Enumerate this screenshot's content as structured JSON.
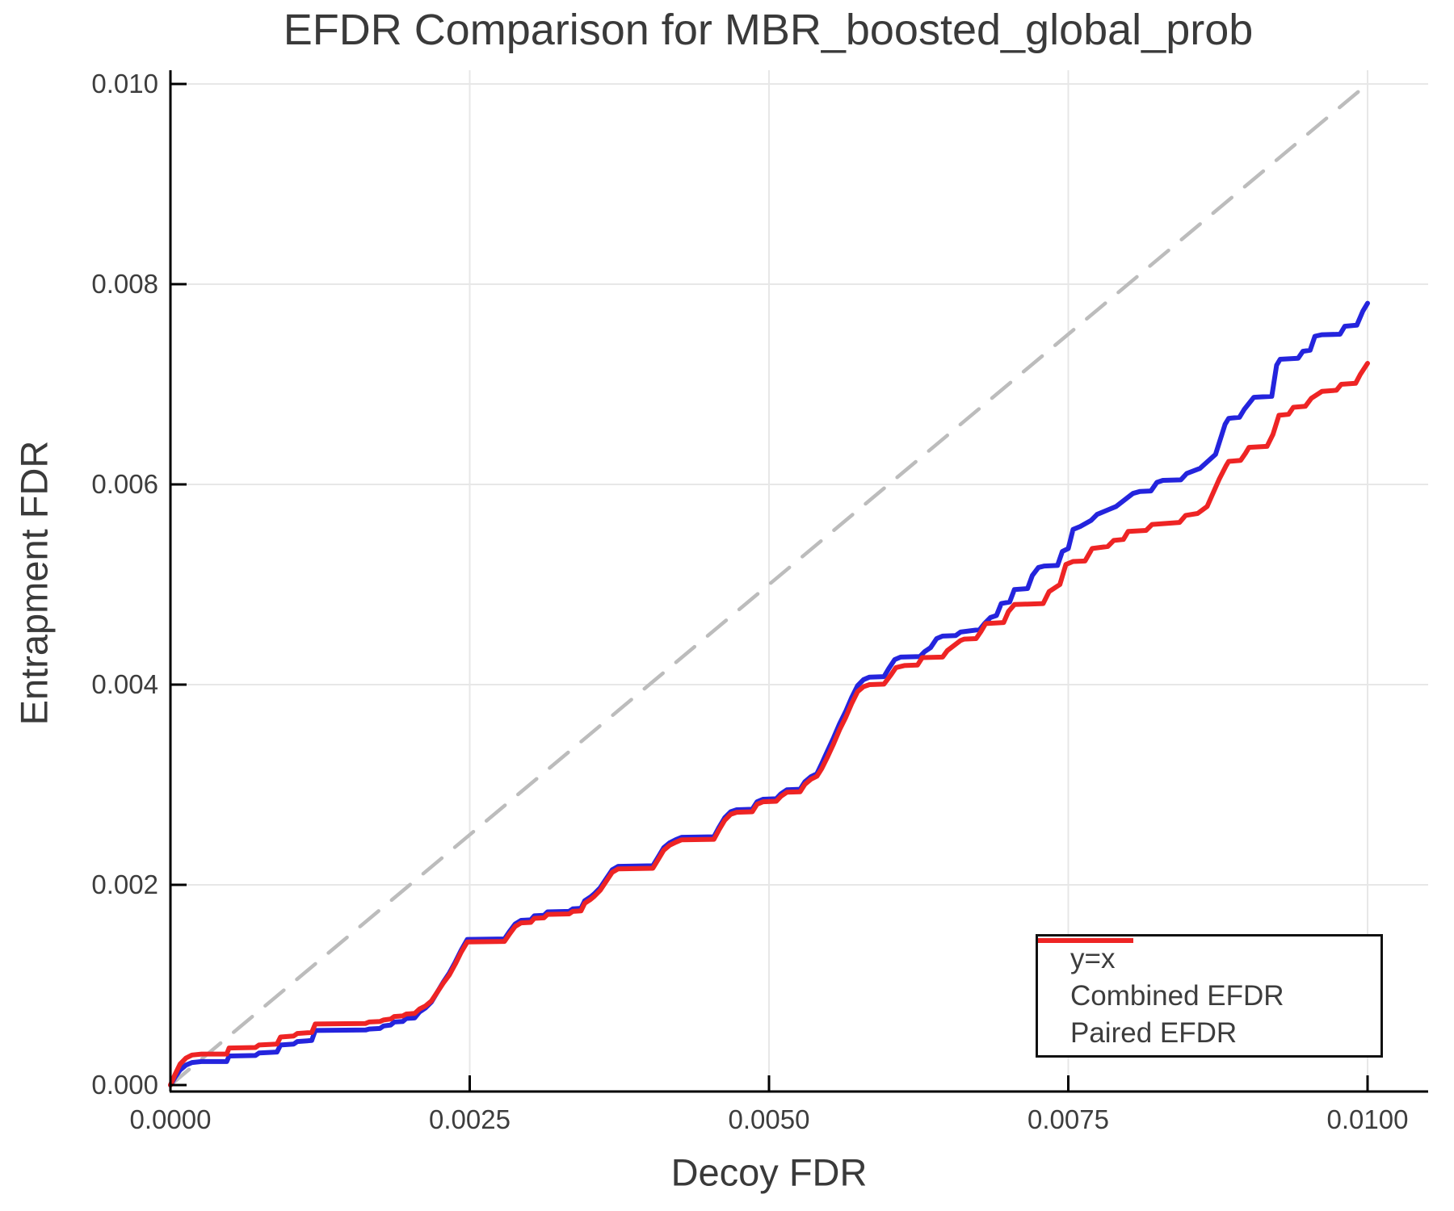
{
  "figure": {
    "title": "EFDR Comparison for MBR_boosted_global_prob"
  },
  "chart_data": {
    "type": "line",
    "title": "EFDR Comparison for MBR_boosted_global_prob",
    "xlabel": "Decoy FDR",
    "ylabel": "Entrapment FDR",
    "grid": true,
    "xlim": [
      0.0,
      0.0105
    ],
    "ylim": [
      0.0,
      0.0102
    ],
    "x_ticks": {
      "values": [
        0.0,
        0.0025,
        0.005,
        0.0075,
        0.01
      ],
      "labels": [
        "0.0000",
        "0.0025",
        "0.0050",
        "0.0075",
        "0.0100"
      ]
    },
    "y_ticks": {
      "values": [
        0.0,
        0.002,
        0.004,
        0.006,
        0.008,
        0.01
      ],
      "labels": [
        "0.000",
        "0.002",
        "0.004",
        "0.006",
        "0.008",
        "0.010"
      ]
    },
    "colors": {
      "identity": "#bcbcbc",
      "combined": "#2424dd",
      "paired": "#ee2424",
      "grid": "#e7e7e7",
      "axis": "#000000",
      "tick_text": "#3d3d3d"
    },
    "legend": {
      "position": "bottom-right",
      "entries": [
        {
          "label": "y=x",
          "color": "#bcbcbc",
          "dash": "30 20",
          "width": 4.5
        },
        {
          "label": "Combined EFDR",
          "color": "#2424dd",
          "dash": "",
          "width": 6
        },
        {
          "label": "Paired EFDR",
          "color": "#ee2424",
          "dash": "",
          "width": 6
        }
      ]
    },
    "units_note": "series points are in units of 1e-4 on both axes (100 = 0.01)",
    "series": [
      {
        "name": "y=x",
        "style": "dashed",
        "color": "#bcbcbc",
        "width": 4.5,
        "dash": "30 21",
        "points": [
          [
            0,
            0
          ],
          [
            100,
            100
          ]
        ]
      },
      {
        "name": "Combined EFDR",
        "style": "solid",
        "color": "#2424dd",
        "width": 6,
        "dash": "",
        "points": [
          [
            0,
            0
          ],
          [
            0.4,
            0.8
          ],
          [
            0.8,
            1.5
          ],
          [
            1.3,
            2.0
          ],
          [
            1.8,
            2.25
          ],
          [
            2.6,
            2.35
          ],
          [
            4.7,
            2.35
          ],
          [
            4.9,
            2.9
          ],
          [
            7.1,
            2.95
          ],
          [
            7.4,
            3.2
          ],
          [
            8.9,
            3.3
          ],
          [
            9.2,
            4.0
          ],
          [
            10.3,
            4.1
          ],
          [
            10.6,
            4.35
          ],
          [
            11.8,
            4.45
          ],
          [
            12.1,
            5.45
          ],
          [
            16.3,
            5.5
          ],
          [
            16.6,
            5.6
          ],
          [
            17.5,
            5.65
          ],
          [
            17.8,
            5.9
          ],
          [
            18.4,
            6.0
          ],
          [
            18.7,
            6.3
          ],
          [
            19.4,
            6.35
          ],
          [
            19.7,
            6.65
          ],
          [
            20.4,
            6.7
          ],
          [
            20.8,
            7.3
          ],
          [
            21.3,
            7.7
          ],
          [
            21.8,
            8.3
          ],
          [
            22.3,
            9.3
          ],
          [
            22.8,
            10.3
          ],
          [
            23.3,
            11.2
          ],
          [
            23.8,
            12.3
          ],
          [
            24.3,
            13.5
          ],
          [
            24.8,
            14.55
          ],
          [
            27.9,
            14.6
          ],
          [
            28.3,
            15.3
          ],
          [
            28.8,
            16.1
          ],
          [
            29.3,
            16.45
          ],
          [
            30.1,
            16.5
          ],
          [
            30.4,
            16.9
          ],
          [
            31.2,
            16.95
          ],
          [
            31.5,
            17.3
          ],
          [
            33.3,
            17.35
          ],
          [
            33.6,
            17.6
          ],
          [
            34.3,
            17.65
          ],
          [
            34.6,
            18.4
          ],
          [
            35.1,
            18.8
          ],
          [
            35.4,
            19.1
          ],
          [
            35.9,
            19.7
          ],
          [
            36.4,
            20.6
          ],
          [
            36.9,
            21.5
          ],
          [
            37.4,
            21.85
          ],
          [
            40.3,
            21.9
          ],
          [
            40.7,
            22.7
          ],
          [
            41.2,
            23.7
          ],
          [
            41.7,
            24.2
          ],
          [
            42.2,
            24.5
          ],
          [
            42.7,
            24.75
          ],
          [
            45.4,
            24.8
          ],
          [
            45.8,
            25.7
          ],
          [
            46.3,
            26.7
          ],
          [
            46.8,
            27.3
          ],
          [
            47.3,
            27.5
          ],
          [
            48.6,
            27.55
          ],
          [
            49,
            28.3
          ],
          [
            49.5,
            28.55
          ],
          [
            50.6,
            28.6
          ],
          [
            51,
            29.1
          ],
          [
            51.5,
            29.5
          ],
          [
            52.6,
            29.55
          ],
          [
            53,
            30.3
          ],
          [
            53.5,
            30.8
          ],
          [
            54,
            31.1
          ],
          [
            54.4,
            32.1
          ],
          [
            54.9,
            33.4
          ],
          [
            55.4,
            34.7
          ],
          [
            55.9,
            36.1
          ],
          [
            56.4,
            37.3
          ],
          [
            56.9,
            38.7
          ],
          [
            57.4,
            39.9
          ],
          [
            57.9,
            40.5
          ],
          [
            58.4,
            40.75
          ],
          [
            59.6,
            40.8
          ],
          [
            60,
            41.6
          ],
          [
            60.5,
            42.5
          ],
          [
            61,
            42.75
          ],
          [
            62.6,
            42.8
          ],
          [
            63,
            43.3
          ],
          [
            63.5,
            43.7
          ],
          [
            64,
            44.6
          ],
          [
            64.5,
            44.85
          ],
          [
            65.6,
            44.9
          ],
          [
            66,
            45.25
          ],
          [
            67.6,
            45.5
          ],
          [
            68,
            46.1
          ],
          [
            68.5,
            46.7
          ],
          [
            69,
            46.9
          ],
          [
            69.4,
            48.1
          ],
          [
            70.1,
            48.25
          ],
          [
            70.5,
            49.5
          ],
          [
            71.6,
            49.6
          ],
          [
            72,
            50.9
          ],
          [
            72.5,
            51.7
          ],
          [
            73,
            51.85
          ],
          [
            74.1,
            51.9
          ],
          [
            74.5,
            53.3
          ],
          [
            75,
            53.6
          ],
          [
            75.4,
            55.5
          ],
          [
            76,
            55.8
          ],
          [
            76.9,
            56.4
          ],
          [
            77.4,
            57.0
          ],
          [
            78.4,
            57.5
          ],
          [
            79,
            57.8
          ],
          [
            80.4,
            59.1
          ],
          [
            81,
            59.3
          ],
          [
            81.9,
            59.35
          ],
          [
            82.4,
            60.2
          ],
          [
            82.9,
            60.4
          ],
          [
            84.4,
            60.45
          ],
          [
            84.9,
            61.1
          ],
          [
            86,
            61.6
          ],
          [
            87.3,
            63.0
          ],
          [
            88.1,
            66.0
          ],
          [
            88.4,
            66.6
          ],
          [
            89.3,
            66.7
          ],
          [
            89.7,
            67.5
          ],
          [
            90.5,
            68.7
          ],
          [
            92,
            68.8
          ],
          [
            92.4,
            71.9
          ],
          [
            92.7,
            72.5
          ],
          [
            94.2,
            72.6
          ],
          [
            94.6,
            73.3
          ],
          [
            95.2,
            73.4
          ],
          [
            95.6,
            74.8
          ],
          [
            96.2,
            74.95
          ],
          [
            97.7,
            75.0
          ],
          [
            98.1,
            75.8
          ],
          [
            99.1,
            75.9
          ],
          [
            99.6,
            77.3
          ],
          [
            100,
            78.1
          ]
        ]
      },
      {
        "name": "Paired EFDR",
        "style": "solid",
        "color": "#ee2424",
        "width": 6,
        "dash": "",
        "points": [
          [
            0,
            0
          ],
          [
            0.4,
            1.1
          ],
          [
            0.8,
            2.1
          ],
          [
            1.3,
            2.7
          ],
          [
            1.8,
            3.0
          ],
          [
            2.6,
            3.1
          ],
          [
            4.7,
            3.1
          ],
          [
            4.9,
            3.7
          ],
          [
            7.1,
            3.75
          ],
          [
            7.4,
            4.0
          ],
          [
            8.9,
            4.1
          ],
          [
            9.2,
            4.8
          ],
          [
            10.3,
            4.9
          ],
          [
            10.6,
            5.15
          ],
          [
            11.8,
            5.25
          ],
          [
            12.1,
            6.1
          ],
          [
            16.3,
            6.15
          ],
          [
            16.6,
            6.3
          ],
          [
            17.5,
            6.35
          ],
          [
            17.8,
            6.5
          ],
          [
            18.4,
            6.6
          ],
          [
            18.7,
            6.85
          ],
          [
            19.4,
            6.9
          ],
          [
            19.7,
            7.1
          ],
          [
            20.4,
            7.15
          ],
          [
            20.8,
            7.6
          ],
          [
            21.3,
            7.9
          ],
          [
            21.8,
            8.4
          ],
          [
            22.3,
            9.3
          ],
          [
            22.8,
            10.2
          ],
          [
            23.3,
            11.0
          ],
          [
            23.8,
            12.1
          ],
          [
            24.3,
            13.3
          ],
          [
            24.8,
            14.3
          ],
          [
            27.9,
            14.35
          ],
          [
            28.3,
            15.05
          ],
          [
            28.8,
            15.85
          ],
          [
            29.3,
            16.2
          ],
          [
            30.1,
            16.25
          ],
          [
            30.4,
            16.65
          ],
          [
            31.2,
            16.7
          ],
          [
            31.5,
            17.05
          ],
          [
            33.3,
            17.1
          ],
          [
            33.6,
            17.35
          ],
          [
            34.3,
            17.4
          ],
          [
            34.6,
            18.15
          ],
          [
            35.1,
            18.55
          ],
          [
            35.4,
            18.85
          ],
          [
            35.9,
            19.45
          ],
          [
            36.4,
            20.35
          ],
          [
            36.9,
            21.25
          ],
          [
            37.4,
            21.6
          ],
          [
            40.3,
            21.65
          ],
          [
            40.7,
            22.45
          ],
          [
            41.2,
            23.45
          ],
          [
            41.7,
            23.95
          ],
          [
            42.2,
            24.25
          ],
          [
            42.7,
            24.5
          ],
          [
            45.4,
            24.55
          ],
          [
            45.8,
            25.45
          ],
          [
            46.3,
            26.45
          ],
          [
            46.8,
            27.05
          ],
          [
            47.3,
            27.25
          ],
          [
            48.6,
            27.3
          ],
          [
            49,
            28.05
          ],
          [
            49.5,
            28.3
          ],
          [
            50.6,
            28.35
          ],
          [
            51,
            28.85
          ],
          [
            51.5,
            29.25
          ],
          [
            52.6,
            29.3
          ],
          [
            53,
            30.05
          ],
          [
            53.5,
            30.55
          ],
          [
            54,
            30.85
          ],
          [
            54.4,
            31.6
          ],
          [
            54.9,
            32.8
          ],
          [
            55.4,
            34.1
          ],
          [
            55.9,
            35.5
          ],
          [
            56.4,
            36.7
          ],
          [
            56.9,
            38.1
          ],
          [
            57.4,
            39.3
          ],
          [
            57.9,
            39.8
          ],
          [
            58.4,
            40.0
          ],
          [
            59.6,
            40.05
          ],
          [
            60.2,
            41.0
          ],
          [
            60.6,
            41.7
          ],
          [
            61.3,
            41.9
          ],
          [
            62.4,
            41.95
          ],
          [
            62.8,
            42.7
          ],
          [
            64.5,
            42.75
          ],
          [
            64.9,
            43.4
          ],
          [
            66,
            44.4
          ],
          [
            66.3,
            44.55
          ],
          [
            67.3,
            44.6
          ],
          [
            67.7,
            45.3
          ],
          [
            68.1,
            46.1
          ],
          [
            69.6,
            46.2
          ],
          [
            70,
            47.3
          ],
          [
            70.5,
            48.0
          ],
          [
            72.9,
            48.1
          ],
          [
            73.4,
            49.3
          ],
          [
            74.3,
            50.0
          ],
          [
            74.8,
            52.0
          ],
          [
            75.4,
            52.3
          ],
          [
            76.4,
            52.35
          ],
          [
            77,
            53.6
          ],
          [
            78.3,
            53.8
          ],
          [
            78.8,
            54.4
          ],
          [
            79.6,
            54.5
          ],
          [
            80,
            55.3
          ],
          [
            81.5,
            55.4
          ],
          [
            82,
            56.0
          ],
          [
            84.3,
            56.2
          ],
          [
            84.8,
            56.9
          ],
          [
            85.8,
            57.1
          ],
          [
            86.6,
            57.8
          ],
          [
            87.6,
            60.5
          ],
          [
            88.2,
            61.9
          ],
          [
            88.4,
            62.3
          ],
          [
            89.4,
            62.4
          ],
          [
            89.8,
            63.1
          ],
          [
            90.1,
            63.7
          ],
          [
            91.6,
            63.8
          ],
          [
            92.1,
            65.0
          ],
          [
            92.6,
            66.9
          ],
          [
            93.4,
            67.0
          ],
          [
            93.8,
            67.7
          ],
          [
            94.8,
            67.8
          ],
          [
            95.3,
            68.6
          ],
          [
            96.2,
            69.3
          ],
          [
            97.4,
            69.4
          ],
          [
            97.8,
            70.0
          ],
          [
            99,
            70.1
          ],
          [
            99.4,
            71.0
          ],
          [
            100,
            72.1
          ]
        ]
      }
    ]
  }
}
